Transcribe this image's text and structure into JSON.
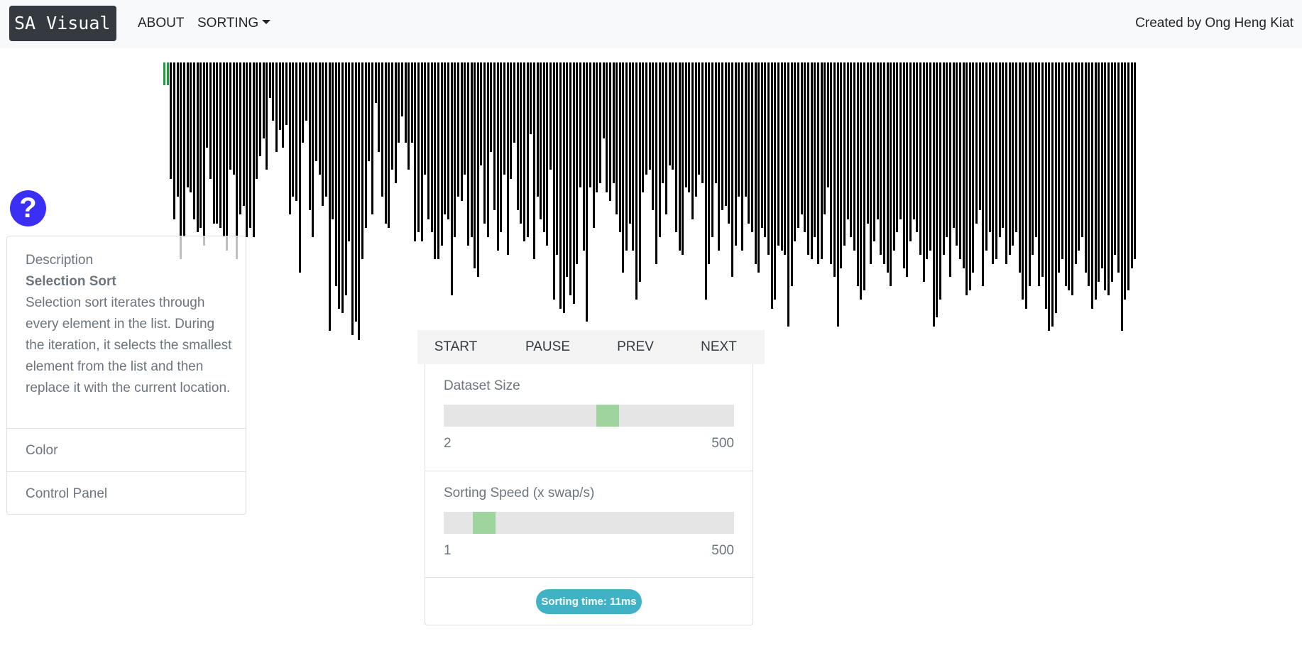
{
  "navbar": {
    "brand": "SA Visual",
    "about_label": "ABOUT",
    "sorting_label": "SORTING",
    "credit": "Created by Ong Heng Kiat"
  },
  "help": {
    "icon": "?"
  },
  "side_panel": {
    "description_header": "Description",
    "algorithm_title": "Selection Sort",
    "algorithm_text": "Selection sort iterates through every element in the list. During the iteration, it selects the smallest element from the list and then replace it with the current location.",
    "color_label": "Color",
    "control_panel_label": "Control Panel"
  },
  "buttons": {
    "start": "START",
    "pause": "PAUSE",
    "prev": "PREV",
    "next": "NEXT"
  },
  "controls": {
    "dataset_size": {
      "label": "Dataset Size",
      "min": "2",
      "max": "500",
      "value_fraction": 0.57
    },
    "sorting_speed": {
      "label": "Sorting Speed (x swap/s)",
      "min": "1",
      "max": "500",
      "value_fraction": 0.11
    },
    "sorting_time": "Sorting time: 11ms"
  },
  "colors": {
    "bar": "#000000",
    "sorted_bar": "#1f9d3a",
    "help_button": "#3b2ef5",
    "badge": "#3fb3c5",
    "slider_thumb": "#6ec86e"
  },
  "bars": {
    "sorted_count": 2,
    "heights": [
      0.05,
      0.05,
      0.26,
      0.35,
      0.3,
      0.44,
      0.39,
      0.28,
      0.29,
      0.35,
      0.38,
      0.37,
      0.41,
      0.19,
      0.26,
      0.36,
      0.36,
      0.37,
      0.39,
      0.42,
      0.24,
      0.25,
      0.44,
      0.34,
      0.32,
      0.39,
      0.37,
      0.39,
      0.26,
      0.21,
      0.17,
      0.24,
      0.08,
      0.13,
      0.2,
      0.15,
      0.19,
      0.14,
      0.34,
      0.3,
      0.31,
      0.47,
      0.18,
      0.13,
      0.33,
      0.39,
      0.22,
      0.25,
      0.32,
      0.3,
      0.6,
      0.35,
      0.5,
      0.55,
      0.56,
      0.52,
      0.4,
      0.61,
      0.58,
      0.62,
      0.44,
      0.37,
      0.22,
      0.34,
      0.09,
      0.2,
      0.3,
      0.36,
      0.37,
      0.24,
      0.27,
      0.18,
      0.12,
      0.18,
      0.24,
      0.18,
      0.4,
      0.38,
      0.4,
      0.25,
      0.35,
      0.38,
      0.44,
      0.44,
      0.41,
      0.34,
      0.35,
      0.52,
      0.39,
      0.3,
      0.31,
      0.25,
      0.41,
      0.39,
      0.46,
      0.48,
      0.23,
      0.36,
      0.39,
      0.2,
      0.33,
      0.42,
      0.38,
      0.25,
      0.43,
      0.26,
      0.18,
      0.33,
      0.36,
      0.4,
      0.39,
      0.16,
      0.44,
      0.3,
      0.35,
      0.38,
      0.41,
      0.24,
      0.53,
      0.43,
      0.55,
      0.56,
      0.48,
      0.52,
      0.54,
      0.45,
      0.28,
      0.42,
      0.58,
      0.28,
      0.37,
      0.29,
      0.27,
      0.17,
      0.29,
      0.31,
      0.27,
      0.34,
      0.38,
      0.47,
      0.42,
      0.36,
      0.42,
      0.53,
      0.49,
      0.29,
      0.25,
      0.24,
      0.33,
      0.45,
      0.39,
      0.27,
      0.34,
      0.23,
      0.24,
      0.38,
      0.42,
      0.43,
      0.28,
      0.29,
      0.35,
      0.3,
      0.25,
      0.27,
      0.53,
      0.45,
      0.39,
      0.27,
      0.42,
      0.33,
      0.32,
      0.36,
      0.48,
      0.41,
      0.3,
      0.42,
      0.3,
      0.36,
      0.38,
      0.45,
      0.47,
      0.37,
      0.39,
      0.43,
      0.55,
      0.53,
      0.41,
      0.42,
      0.43,
      0.59,
      0.5,
      0.4,
      0.37,
      0.34,
      0.38,
      0.43,
      0.44,
      0.39,
      0.45,
      0.44,
      0.34,
      0.28,
      0.45,
      0.48,
      0.59,
      0.46,
      0.41,
      0.35,
      0.39,
      0.42,
      0.5,
      0.53,
      0.51,
      0.36,
      0.45,
      0.4,
      0.35,
      0.43,
      0.45,
      0.47,
      0.5,
      0.42,
      0.38,
      0.35,
      0.46,
      0.48,
      0.4,
      0.35,
      0.38,
      0.43,
      0.49,
      0.44,
      0.42,
      0.59,
      0.57,
      0.53,
      0.43,
      0.39,
      0.48,
      0.37,
      0.41,
      0.44,
      0.46,
      0.52,
      0.51,
      0.47,
      0.36,
      0.33,
      0.5,
      0.42,
      0.38,
      0.45,
      0.44,
      0.39,
      0.37,
      0.45,
      0.43,
      0.41,
      0.38,
      0.47,
      0.53,
      0.55,
      0.5,
      0.43,
      0.39,
      0.5,
      0.48,
      0.55,
      0.6,
      0.59,
      0.56,
      0.47,
      0.44,
      0.5,
      0.51,
      0.52,
      0.45,
      0.42,
      0.39,
      0.47,
      0.5,
      0.55,
      0.53,
      0.49,
      0.46,
      0.51,
      0.52,
      0.49,
      0.43,
      0.47,
      0.6,
      0.53,
      0.51,
      0.46,
      0.44
    ]
  }
}
